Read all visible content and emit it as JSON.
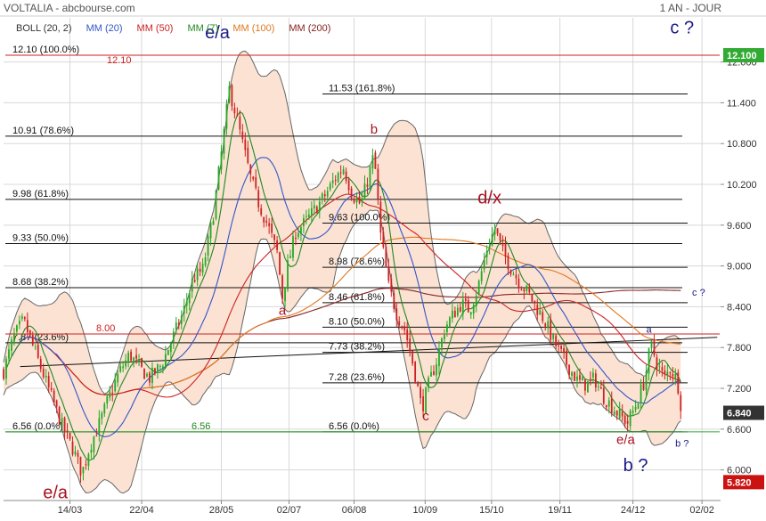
{
  "header": {
    "title": "VOLTALIA - abcbourse.com",
    "period": "1 AN - JOUR"
  },
  "legend": [
    {
      "label": "BOLL (20, 2)",
      "color": "#333333"
    },
    {
      "label": "MM (20)",
      "color": "#3355cc"
    },
    {
      "label": "MM (50)",
      "color": "#cc2222"
    },
    {
      "label": "MM (7)",
      "color": "#228822"
    },
    {
      "label": "MM (100)",
      "color": "#e07820"
    },
    {
      "label": "MM (200)",
      "color": "#882222"
    }
  ],
  "colors": {
    "up": "#22aa22",
    "down": "#cc2222",
    "band_fill": "#fbe2d2",
    "band_line": "#666666",
    "grid": "#d8d8d8",
    "wave_red": "#aa1122",
    "wave_blue": "#1a1a88",
    "last_price_bg": "#333333",
    "high_tag_bg": "#33aa33",
    "low_tag_bg": "#cc1111"
  },
  "chart_data": {
    "type": "candlestick",
    "ylim": [
      5.55,
      12.65
    ],
    "y_ticks": [
      "6.000",
      "6.600",
      "7.200",
      "7.800",
      "8.400",
      "9.000",
      "9.600",
      "10.200",
      "10.800",
      "11.400",
      "12.000"
    ],
    "x_ticks": [
      "14/03",
      "22/04",
      "28/05",
      "02/07",
      "06/08",
      "10/09",
      "15/10",
      "19/11",
      "24/12",
      "02/02"
    ],
    "price_tags": [
      {
        "label": "12.100",
        "value": 12.1,
        "type": "high"
      },
      {
        "label": "6.840",
        "value": 6.84,
        "type": "last"
      },
      {
        "label": "5.820",
        "value": 5.82,
        "type": "low"
      }
    ],
    "fib_set_1": [
      {
        "label": "12.10  (100.0%)",
        "value": 12.1
      },
      {
        "label": "10.91  (78.6%)",
        "value": 10.91
      },
      {
        "label": "9.98  (61.8%)",
        "value": 9.98
      },
      {
        "label": "9.33  (50.0%)",
        "value": 9.33
      },
      {
        "label": "8.68  (38.2%)",
        "value": 8.68
      },
      {
        "label": "7.87  (23.6%)",
        "value": 7.87
      },
      {
        "label": "6.56  (0.0%)",
        "value": 6.56
      }
    ],
    "fib_set_2": [
      {
        "label": "11.53  (161.8%)",
        "value": 11.53
      },
      {
        "label": "9.63  (100.0%)",
        "value": 9.63
      },
      {
        "label": "8.98  (78.6%)",
        "value": 8.98
      },
      {
        "label": "8.46  (61.8%)",
        "value": 8.46
      },
      {
        "label": "8.10  (50.0%)",
        "value": 8.1
      },
      {
        "label": "7.73  (38.2%)",
        "value": 7.73
      },
      {
        "label": "7.28  (23.6%)",
        "value": 7.28
      },
      {
        "label": "6.56  (0.0%)",
        "value": 6.56
      }
    ],
    "level_labels": [
      {
        "label": "12.10",
        "value": 12.1
      },
      {
        "label": "8.00",
        "value": 8.0
      },
      {
        "label": "6.56",
        "value": 6.56
      }
    ],
    "wave_labels": [
      {
        "label": "e/a",
        "day": 78,
        "value": 5.58,
        "color": "red",
        "size": "big"
      },
      {
        "label": "e/a",
        "day": 322,
        "value": 12.35,
        "color": "blue",
        "size": "big"
      },
      {
        "label": "a",
        "day": 420,
        "value": 8.28,
        "color": "red",
        "size": "mid"
      },
      {
        "label": "b",
        "day": 558,
        "value": 10.95,
        "color": "red",
        "size": "mid"
      },
      {
        "label": "c",
        "day": 636,
        "value": 6.73,
        "color": "red",
        "size": "mid"
      },
      {
        "label": "d/x",
        "day": 732,
        "value": 9.92,
        "color": "red",
        "size": "big"
      },
      {
        "label": "a",
        "day": 972,
        "value": 8.02,
        "color": "blue",
        "size": "small"
      },
      {
        "label": "e/a",
        "day": 937,
        "value": 6.38,
        "color": "red",
        "size": "mid"
      },
      {
        "label": "b ?",
        "day": 952,
        "value": 5.98,
        "color": "blue",
        "size": "big"
      },
      {
        "label": "b ?",
        "day": 1022,
        "value": 6.34,
        "color": "blue",
        "size": "small"
      },
      {
        "label": "c ?",
        "day": 1047,
        "value": 8.56,
        "color": "blue",
        "size": "small"
      },
      {
        "label": "c ?",
        "day": 1022,
        "value": 12.42,
        "color": "blue",
        "size": "big"
      }
    ],
    "trend_line": {
      "from": [
        25,
        7.52
      ],
      "to": [
        1075,
        7.95
      ]
    },
    "x_axis_days": [
      100,
      208,
      328,
      430,
      528,
      635,
      735,
      838,
      948,
      1052
    ],
    "x_domain": [
      0,
      1080
    ],
    "anchors": [
      [
        0,
        7.45
      ],
      [
        15,
        7.95
      ],
      [
        30,
        8.2
      ],
      [
        45,
        7.8
      ],
      [
        60,
        7.4
      ],
      [
        75,
        7.0
      ],
      [
        90,
        6.6
      ],
      [
        105,
        6.3
      ],
      [
        118,
        5.95
      ],
      [
        130,
        6.35
      ],
      [
        145,
        6.7
      ],
      [
        160,
        7.1
      ],
      [
        175,
        7.45
      ],
      [
        190,
        7.7
      ],
      [
        205,
        7.5
      ],
      [
        220,
        7.35
      ],
      [
        238,
        7.55
      ],
      [
        255,
        7.95
      ],
      [
        270,
        8.3
      ],
      [
        285,
        8.8
      ],
      [
        300,
        8.95
      ],
      [
        315,
        9.7
      ],
      [
        330,
        10.8
      ],
      [
        340,
        11.6
      ],
      [
        348,
        11.3
      ],
      [
        360,
        10.8
      ],
      [
        372,
        10.3
      ],
      [
        385,
        9.9
      ],
      [
        398,
        9.6
      ],
      [
        412,
        9.2
      ],
      [
        420,
        8.55
      ],
      [
        428,
        9.0
      ],
      [
        440,
        9.5
      ],
      [
        455,
        9.65
      ],
      [
        470,
        9.85
      ],
      [
        485,
        10.05
      ],
      [
        500,
        10.3
      ],
      [
        512,
        10.45
      ],
      [
        525,
        10.05
      ],
      [
        538,
        9.9
      ],
      [
        548,
        10.25
      ],
      [
        558,
        10.65
      ],
      [
        568,
        9.45
      ],
      [
        580,
        8.7
      ],
      [
        592,
        8.3
      ],
      [
        605,
        8.05
      ],
      [
        618,
        7.5
      ],
      [
        630,
        6.9
      ],
      [
        640,
        7.25
      ],
      [
        652,
        7.6
      ],
      [
        665,
        8.1
      ],
      [
        678,
        8.3
      ],
      [
        690,
        8.45
      ],
      [
        702,
        8.35
      ],
      [
        715,
        8.7
      ],
      [
        728,
        9.25
      ],
      [
        740,
        9.55
      ],
      [
        752,
        9.2
      ],
      [
        765,
        8.95
      ],
      [
        778,
        8.75
      ],
      [
        790,
        8.6
      ],
      [
        802,
        8.4
      ],
      [
        815,
        8.2
      ],
      [
        828,
        7.9
      ],
      [
        840,
        7.7
      ],
      [
        852,
        7.5
      ],
      [
        865,
        7.3
      ],
      [
        878,
        7.25
      ],
      [
        890,
        7.35
      ],
      [
        902,
        7.1
      ],
      [
        915,
        6.95
      ],
      [
        928,
        6.8
      ],
      [
        940,
        6.7
      ],
      [
        952,
        6.95
      ],
      [
        965,
        7.3
      ],
      [
        975,
        7.85
      ],
      [
        985,
        7.55
      ],
      [
        995,
        7.35
      ],
      [
        1005,
        7.5
      ],
      [
        1015,
        7.3
      ],
      [
        1022,
        6.84
      ]
    ]
  }
}
